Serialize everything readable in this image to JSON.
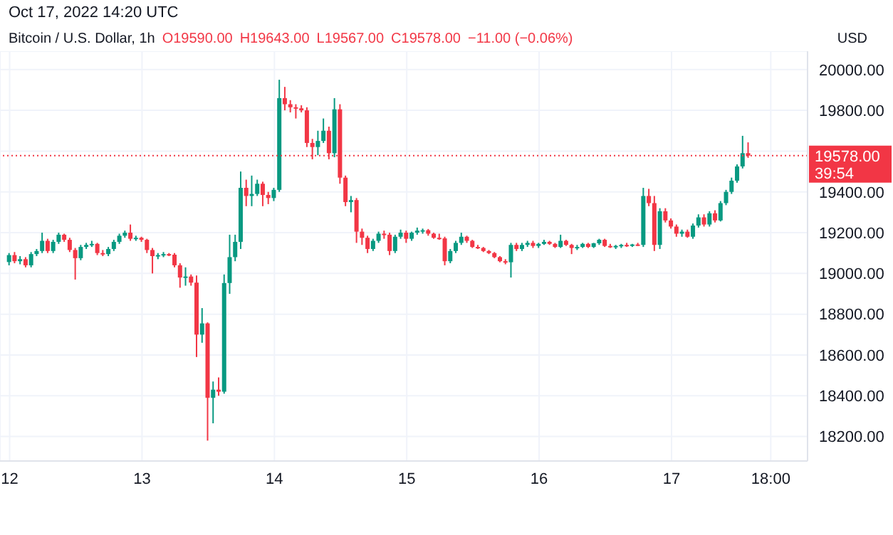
{
  "chart_data": {
    "type": "candlestick",
    "title": "Bitcoin / U.S. Dollar, 1h",
    "subtitle": "Oct 17, 2022 14:20 UTC",
    "ylabel": "USD",
    "annotations": [
      "O19590.00",
      "H19643.00",
      "L19567.00",
      "C19578.00",
      "−11.00 (−0.06%)",
      "39:54"
    ],
    "x": [
      "2022-10-12T00:00",
      "2022-10-12T01:00",
      "2022-10-12T02:00",
      "2022-10-12T03:00",
      "2022-10-12T04:00",
      "2022-10-12T05:00",
      "2022-10-12T06:00",
      "2022-10-12T07:00",
      "2022-10-12T08:00",
      "2022-10-12T09:00",
      "2022-10-12T10:00",
      "2022-10-12T11:00",
      "2022-10-12T12:00",
      "2022-10-12T13:00",
      "2022-10-12T14:00",
      "2022-10-12T15:00",
      "2022-10-12T16:00",
      "2022-10-12T17:00",
      "2022-10-12T18:00",
      "2022-10-12T19:00",
      "2022-10-12T20:00",
      "2022-10-12T21:00",
      "2022-10-12T22:00",
      "2022-10-12T23:00",
      "2022-10-13T00:00",
      "2022-10-13T01:00",
      "2022-10-13T02:00",
      "2022-10-13T03:00",
      "2022-10-13T04:00",
      "2022-10-13T05:00",
      "2022-10-13T06:00",
      "2022-10-13T07:00",
      "2022-10-13T08:00",
      "2022-10-13T09:00",
      "2022-10-13T10:00",
      "2022-10-13T11:00",
      "2022-10-13T12:00",
      "2022-10-13T13:00",
      "2022-10-13T14:00",
      "2022-10-13T15:00",
      "2022-10-13T16:00",
      "2022-10-13T17:00",
      "2022-10-13T18:00",
      "2022-10-13T19:00",
      "2022-10-13T20:00",
      "2022-10-13T21:00",
      "2022-10-13T22:00",
      "2022-10-13T23:00",
      "2022-10-14T00:00",
      "2022-10-14T01:00",
      "2022-10-14T02:00",
      "2022-10-14T03:00",
      "2022-10-14T04:00",
      "2022-10-14T05:00",
      "2022-10-14T06:00",
      "2022-10-14T07:00",
      "2022-10-14T08:00",
      "2022-10-14T09:00",
      "2022-10-14T10:00",
      "2022-10-14T11:00",
      "2022-10-14T12:00",
      "2022-10-14T13:00",
      "2022-10-14T14:00",
      "2022-10-14T15:00",
      "2022-10-14T16:00",
      "2022-10-14T17:00",
      "2022-10-14T18:00",
      "2022-10-14T19:00",
      "2022-10-14T20:00",
      "2022-10-14T21:00",
      "2022-10-14T22:00",
      "2022-10-14T23:00",
      "2022-10-15T00:00",
      "2022-10-15T01:00",
      "2022-10-15T02:00",
      "2022-10-15T03:00",
      "2022-10-15T04:00",
      "2022-10-15T05:00",
      "2022-10-15T06:00",
      "2022-10-15T07:00",
      "2022-10-15T08:00",
      "2022-10-15T09:00",
      "2022-10-15T10:00",
      "2022-10-15T11:00",
      "2022-10-15T12:00",
      "2022-10-15T13:00",
      "2022-10-15T14:00",
      "2022-10-15T15:00",
      "2022-10-15T16:00",
      "2022-10-15T17:00",
      "2022-10-15T18:00",
      "2022-10-15T19:00",
      "2022-10-15T20:00",
      "2022-10-15T21:00",
      "2022-10-15T22:00",
      "2022-10-15T23:00",
      "2022-10-16T00:00",
      "2022-10-16T01:00",
      "2022-10-16T02:00",
      "2022-10-16T03:00",
      "2022-10-16T04:00",
      "2022-10-16T05:00",
      "2022-10-16T06:00",
      "2022-10-16T07:00",
      "2022-10-16T08:00",
      "2022-10-16T09:00",
      "2022-10-16T10:00",
      "2022-10-16T11:00",
      "2022-10-16T12:00",
      "2022-10-16T13:00",
      "2022-10-16T14:00",
      "2022-10-16T15:00",
      "2022-10-16T16:00",
      "2022-10-16T17:00",
      "2022-10-16T18:00",
      "2022-10-16T19:00",
      "2022-10-16T20:00",
      "2022-10-16T21:00",
      "2022-10-16T22:00",
      "2022-10-16T23:00",
      "2022-10-17T00:00",
      "2022-10-17T01:00",
      "2022-10-17T02:00",
      "2022-10-17T03:00",
      "2022-10-17T04:00",
      "2022-10-17T05:00",
      "2022-10-17T06:00",
      "2022-10-17T07:00",
      "2022-10-17T08:00",
      "2022-10-17T09:00",
      "2022-10-17T10:00",
      "2022-10-17T11:00",
      "2022-10-17T12:00",
      "2022-10-17T13:00",
      "2022-10-17T14:00"
    ],
    "ohlc": [
      [
        19056,
        19100,
        19040,
        19090
      ],
      [
        19090,
        19105,
        19050,
        19060
      ],
      [
        19060,
        19085,
        19045,
        19070
      ],
      [
        19070,
        19080,
        19030,
        19040
      ],
      [
        19040,
        19105,
        19030,
        19095
      ],
      [
        19095,
        19120,
        19085,
        19110
      ],
      [
        19110,
        19200,
        19100,
        19160
      ],
      [
        19160,
        19170,
        19100,
        19110
      ],
      [
        19110,
        19165,
        19100,
        19155
      ],
      [
        19155,
        19200,
        19145,
        19190
      ],
      [
        19190,
        19195,
        19155,
        19165
      ],
      [
        19165,
        19175,
        19105,
        19115
      ],
      [
        19115,
        19125,
        18970,
        19075
      ],
      [
        19075,
        19140,
        19065,
        19130
      ],
      [
        19130,
        19150,
        19120,
        19140
      ],
      [
        19140,
        19160,
        19130,
        19145
      ],
      [
        19145,
        19150,
        19090,
        19100
      ],
      [
        19100,
        19115,
        19085,
        19095
      ],
      [
        19095,
        19130,
        19085,
        19120
      ],
      [
        19120,
        19165,
        19110,
        19155
      ],
      [
        19155,
        19195,
        19145,
        19185
      ],
      [
        19185,
        19210,
        19175,
        19200
      ],
      [
        19200,
        19240,
        19160,
        19170
      ],
      [
        19170,
        19185,
        19160,
        19175
      ],
      [
        19175,
        19180,
        19155,
        19165
      ],
      [
        19165,
        19170,
        19100,
        19115
      ],
      [
        19115,
        19125,
        19000,
        19085
      ],
      [
        19085,
        19100,
        19070,
        19090
      ],
      [
        19090,
        19105,
        19080,
        19095
      ],
      [
        19095,
        19100,
        19085,
        19092
      ],
      [
        19092,
        19100,
        19030,
        19040
      ],
      [
        19040,
        19050,
        18930,
        18980
      ],
      [
        18980,
        19030,
        18940,
        18985
      ],
      [
        18985,
        18995,
        18940,
        18955
      ],
      [
        18955,
        18990,
        18590,
        18700
      ],
      [
        18700,
        18830,
        18660,
        18755
      ],
      [
        18755,
        18760,
        18180,
        18390
      ],
      [
        18390,
        18470,
        18265,
        18430
      ],
      [
        18430,
        18490,
        18400,
        18420
      ],
      [
        18420,
        18995,
        18410,
        18953
      ],
      [
        18953,
        19190,
        18900,
        19080
      ],
      [
        19080,
        19190,
        19060,
        19155
      ],
      [
        19155,
        19500,
        19120,
        19420
      ],
      [
        19420,
        19460,
        19330,
        19380
      ],
      [
        19380,
        19480,
        19330,
        19390
      ],
      [
        19390,
        19460,
        19380,
        19440
      ],
      [
        19440,
        19450,
        19330,
        19385
      ],
      [
        19385,
        19400,
        19340,
        19370
      ],
      [
        19370,
        19420,
        19355,
        19410
      ],
      [
        19410,
        19950,
        19400,
        19860
      ],
      [
        19860,
        19915,
        19800,
        19830
      ],
      [
        19830,
        19850,
        19790,
        19815
      ],
      [
        19815,
        19830,
        19760,
        19810
      ],
      [
        19810,
        19825,
        19790,
        19800
      ],
      [
        19800,
        19815,
        19620,
        19640
      ],
      [
        19640,
        19660,
        19560,
        19620
      ],
      [
        19620,
        19700,
        19580,
        19650
      ],
      [
        19650,
        19760,
        19640,
        19700
      ],
      [
        19700,
        19720,
        19560,
        19590
      ],
      [
        19590,
        19860,
        19570,
        19805
      ],
      [
        19805,
        19830,
        19440,
        19470
      ],
      [
        19470,
        19480,
        19330,
        19350
      ],
      [
        19350,
        19380,
        19300,
        19360
      ],
      [
        19360,
        19370,
        19150,
        19205
      ],
      [
        19205,
        19220,
        19140,
        19175
      ],
      [
        19175,
        19185,
        19100,
        19120
      ],
      [
        19120,
        19170,
        19110,
        19160
      ],
      [
        19160,
        19205,
        19150,
        19195
      ],
      [
        19195,
        19210,
        19170,
        19190
      ],
      [
        19190,
        19200,
        19090,
        19110
      ],
      [
        19110,
        19190,
        19100,
        19180
      ],
      [
        19180,
        19215,
        19170,
        19200
      ],
      [
        19200,
        19210,
        19150,
        19170
      ],
      [
        19170,
        19205,
        19160,
        19200
      ],
      [
        19200,
        19225,
        19190,
        19210
      ],
      [
        19210,
        19220,
        19195,
        19212
      ],
      [
        19212,
        19218,
        19185,
        19195
      ],
      [
        19195,
        19200,
        19170,
        19175
      ],
      [
        19175,
        19195,
        19165,
        19172
      ],
      [
        19172,
        19180,
        19040,
        19060
      ],
      [
        19060,
        19120,
        19050,
        19110
      ],
      [
        19110,
        19160,
        19100,
        19150
      ],
      [
        19150,
        19200,
        19140,
        19180
      ],
      [
        19180,
        19185,
        19150,
        19160
      ],
      [
        19160,
        19165,
        19125,
        19130
      ],
      [
        19130,
        19140,
        19120,
        19125
      ],
      [
        19125,
        19130,
        19105,
        19110
      ],
      [
        19110,
        19115,
        19095,
        19100
      ],
      [
        19100,
        19105,
        19075,
        19080
      ],
      [
        19080,
        19085,
        19055,
        19060
      ],
      [
        19060,
        19070,
        19045,
        19055
      ],
      [
        19055,
        19150,
        18980,
        19140
      ],
      [
        19140,
        19150,
        19110,
        19120
      ],
      [
        19120,
        19150,
        19110,
        19140
      ],
      [
        19140,
        19160,
        19130,
        19150
      ],
      [
        19150,
        19160,
        19125,
        19135
      ],
      [
        19135,
        19150,
        19125,
        19145
      ],
      [
        19145,
        19165,
        19140,
        19155
      ],
      [
        19155,
        19160,
        19140,
        19145
      ],
      [
        19145,
        19150,
        19125,
        19130
      ],
      [
        19130,
        19190,
        19125,
        19160
      ],
      [
        19160,
        19165,
        19135,
        19140
      ],
      [
        19140,
        19145,
        19095,
        19125
      ],
      [
        19125,
        19140,
        19115,
        19130
      ],
      [
        19130,
        19150,
        19125,
        19145
      ],
      [
        19145,
        19150,
        19125,
        19130
      ],
      [
        19130,
        19150,
        19125,
        19148
      ],
      [
        19148,
        19170,
        19140,
        19165
      ],
      [
        19165,
        19170,
        19130,
        19135
      ],
      [
        19135,
        19145,
        19125,
        19128
      ],
      [
        19128,
        19140,
        19120,
        19135
      ],
      [
        19135,
        19145,
        19125,
        19140
      ],
      [
        19140,
        19150,
        19130,
        19138
      ],
      [
        19138,
        19145,
        19130,
        19142
      ],
      [
        19142,
        19150,
        19135,
        19140
      ],
      [
        19140,
        19420,
        19130,
        19380
      ],
      [
        19380,
        19415,
        19330,
        19345
      ],
      [
        19345,
        19380,
        19110,
        19140
      ],
      [
        19140,
        19320,
        19120,
        19305
      ],
      [
        19305,
        19320,
        19250,
        19260
      ],
      [
        19260,
        19270,
        19220,
        19230
      ],
      [
        19230,
        19240,
        19180,
        19195
      ],
      [
        19195,
        19215,
        19180,
        19205
      ],
      [
        19205,
        19215,
        19175,
        19180
      ],
      [
        19180,
        19245,
        19170,
        19235
      ],
      [
        19235,
        19290,
        19225,
        19275
      ],
      [
        19275,
        19290,
        19230,
        19240
      ],
      [
        19240,
        19305,
        19230,
        19295
      ],
      [
        19295,
        19310,
        19250,
        19260
      ],
      [
        19260,
        19355,
        19255,
        19345
      ],
      [
        19345,
        19410,
        19335,
        19400
      ],
      [
        19400,
        19470,
        19390,
        19455
      ],
      [
        19455,
        19535,
        19445,
        19525
      ],
      [
        19525,
        19675,
        19515,
        19590
      ],
      [
        19590,
        19643,
        19567,
        19578
      ]
    ],
    "colors": [
      "#089981",
      "#f23645",
      "#089981",
      "#f23645",
      "#089981",
      "#089981",
      "#089981",
      "#f23645",
      "#089981",
      "#089981",
      "#f23645",
      "#f23645",
      "#f23645",
      "#089981",
      "#089981",
      "#089981",
      "#f23645",
      "#f23645",
      "#089981",
      "#089981",
      "#089981",
      "#089981",
      "#f23645",
      "#089981",
      "#f23645",
      "#f23645",
      "#f23645",
      "#089981",
      "#089981",
      "#f23645",
      "#f23645",
      "#f23645",
      "#089981",
      "#f23645",
      "#f23645",
      "#089981",
      "#f23645",
      "#089981",
      "#f23645",
      "#089981",
      "#089981",
      "#089981",
      "#089981",
      "#f23645",
      "#089981",
      "#089981",
      "#f23645",
      "#f23645",
      "#089981",
      "#089981",
      "#f23645",
      "#f23645",
      "#f23645",
      "#f23645",
      "#f23645",
      "#f23645",
      "#089981",
      "#089981",
      "#f23645",
      "#089981",
      "#f23645",
      "#f23645",
      "#089981",
      "#f23645",
      "#f23645",
      "#f23645",
      "#089981",
      "#089981",
      "#f23645",
      "#f23645",
      "#089981",
      "#089981",
      "#f23645",
      "#089981",
      "#089981",
      "#089981",
      "#f23645",
      "#f23645",
      "#f23645",
      "#f23645",
      "#089981",
      "#089981",
      "#089981",
      "#f23645",
      "#f23645",
      "#f23645",
      "#f23645",
      "#f23645",
      "#f23645",
      "#f23645",
      "#f23645",
      "#089981",
      "#f23645",
      "#089981",
      "#089981",
      "#f23645",
      "#089981",
      "#089981",
      "#f23645",
      "#f23645",
      "#089981",
      "#f23645",
      "#f23645",
      "#089981",
      "#089981",
      "#f23645",
      "#089981",
      "#089981",
      "#f23645",
      "#f23645",
      "#089981",
      "#089981",
      "#f23645",
      "#089981",
      "#f23645",
      "#089981",
      "#f23645",
      "#f23645",
      "#089981",
      "#f23645",
      "#f23645",
      "#f23645",
      "#089981",
      "#f23645",
      "#089981",
      "#089981",
      "#f23645",
      "#089981",
      "#f23645",
      "#089981",
      "#089981",
      "#089981",
      "#089981",
      "#089981",
      "#f23645"
    ],
    "xlim": [
      "2022-10-11T22:15",
      "2022-10-18T00:40"
    ],
    "xticks": [
      {
        "value": "2022-10-12",
        "label": "12"
      },
      {
        "value": "2022-10-13",
        "label": "13"
      },
      {
        "value": "2022-10-14",
        "label": "14"
      },
      {
        "value": "2022-10-15",
        "label": "15"
      },
      {
        "value": "2022-10-16",
        "label": "16"
      },
      {
        "value": "2022-10-17",
        "label": "17"
      },
      {
        "value": "2022-10-17T18:00",
        "label": "18:00"
      }
    ],
    "ylim": [
      18080,
      20090
    ],
    "yticks": [
      {
        "value": 18200,
        "label": "18200.00"
      },
      {
        "value": 18400,
        "label": "18400.00"
      },
      {
        "value": 18600,
        "label": "18600.00"
      },
      {
        "value": 18800,
        "label": "18800.00"
      },
      {
        "value": 19000,
        "label": "19000.00"
      },
      {
        "value": 19200,
        "label": "19200.00"
      },
      {
        "value": 19400,
        "label": "19400.00"
      },
      {
        "value": 19600,
        "label": null
      },
      {
        "value": 19800,
        "label": "19800.00"
      },
      {
        "value": 20000,
        "label": "20000.00"
      }
    ],
    "ref_lines": [
      {
        "axis": "y",
        "value": 19578,
        "label": "19578.00",
        "color": "#f23645",
        "line_style": "dotted"
      }
    ],
    "grid": true
  }
}
